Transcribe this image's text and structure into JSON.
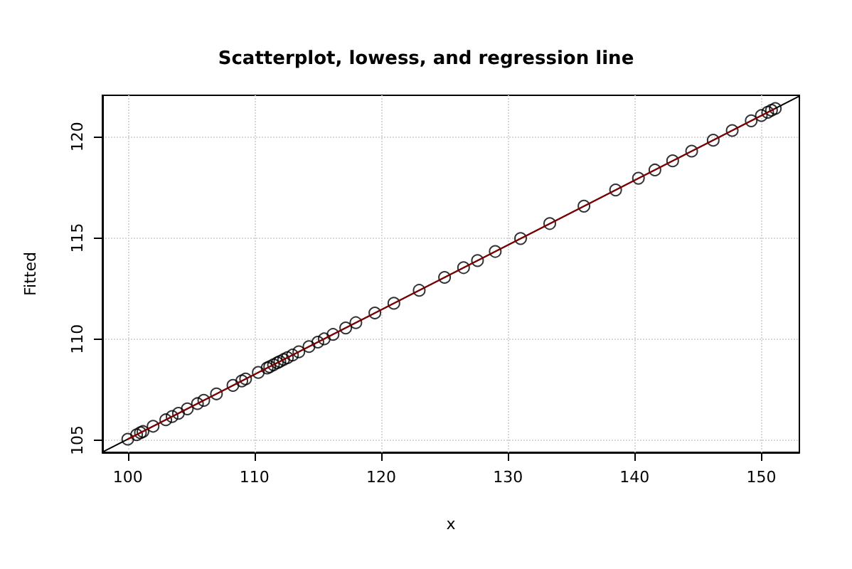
{
  "chart_data": {
    "type": "scatter",
    "title": "Scatterplot, lowess, and regression line",
    "xlabel": "x",
    "ylabel": "Fitted",
    "xlim": [
      98,
      153
    ],
    "ylim": [
      104.4,
      122.05
    ],
    "xticks": [
      100,
      110,
      120,
      130,
      140,
      150
    ],
    "yticks": [
      105,
      110,
      115,
      120
    ],
    "grid": true,
    "series": [
      {
        "type": "line",
        "color": "#000000",
        "marker": "none",
        "x": [
          98,
          153
        ],
        "values": [
          104.41,
          122.01
        ]
      },
      {
        "type": "line",
        "color": "#8b0000",
        "marker": "none",
        "x": [
          100,
          110.3,
          121,
          131,
          141.6,
          151.1
        ],
        "values": [
          105.05,
          108.35,
          111.77,
          114.97,
          118.36,
          121.4
        ]
      },
      {
        "color": "#000000",
        "marker": "circle",
        "x": [
          100,
          100.7,
          101,
          101.2,
          102,
          103,
          103.5,
          104,
          104.7,
          105.5,
          106,
          107,
          108.3,
          109,
          109.3,
          110.3,
          111,
          111.2,
          111.5,
          111.8,
          112,
          112.3,
          112.6,
          113,
          113.5,
          114.3,
          115,
          115.5,
          116.2,
          117.2,
          118,
          119.5,
          121,
          123,
          125,
          126.5,
          127.6,
          129,
          131,
          133.3,
          136,
          138.5,
          140.3,
          141.6,
          143,
          144.5,
          146.2,
          147.7,
          149.2,
          150,
          150.5,
          150.8,
          151.1
        ],
        "values": [
          105.05,
          105.27,
          105.37,
          105.43,
          105.69,
          106.01,
          106.17,
          106.33,
          106.55,
          106.81,
          106.97,
          107.29,
          107.71,
          107.93,
          108.03,
          108.35,
          108.57,
          108.63,
          108.73,
          108.83,
          108.89,
          108.99,
          109.08,
          109.21,
          109.37,
          109.63,
          109.85,
          110.01,
          110.23,
          110.55,
          110.81,
          111.29,
          111.77,
          112.41,
          113.05,
          113.53,
          113.88,
          114.33,
          114.97,
          115.71,
          116.57,
          117.37,
          117.95,
          118.36,
          118.81,
          119.29,
          119.83,
          120.31,
          120.79,
          121.05,
          121.21,
          121.31,
          121.4
        ]
      }
    ]
  }
}
